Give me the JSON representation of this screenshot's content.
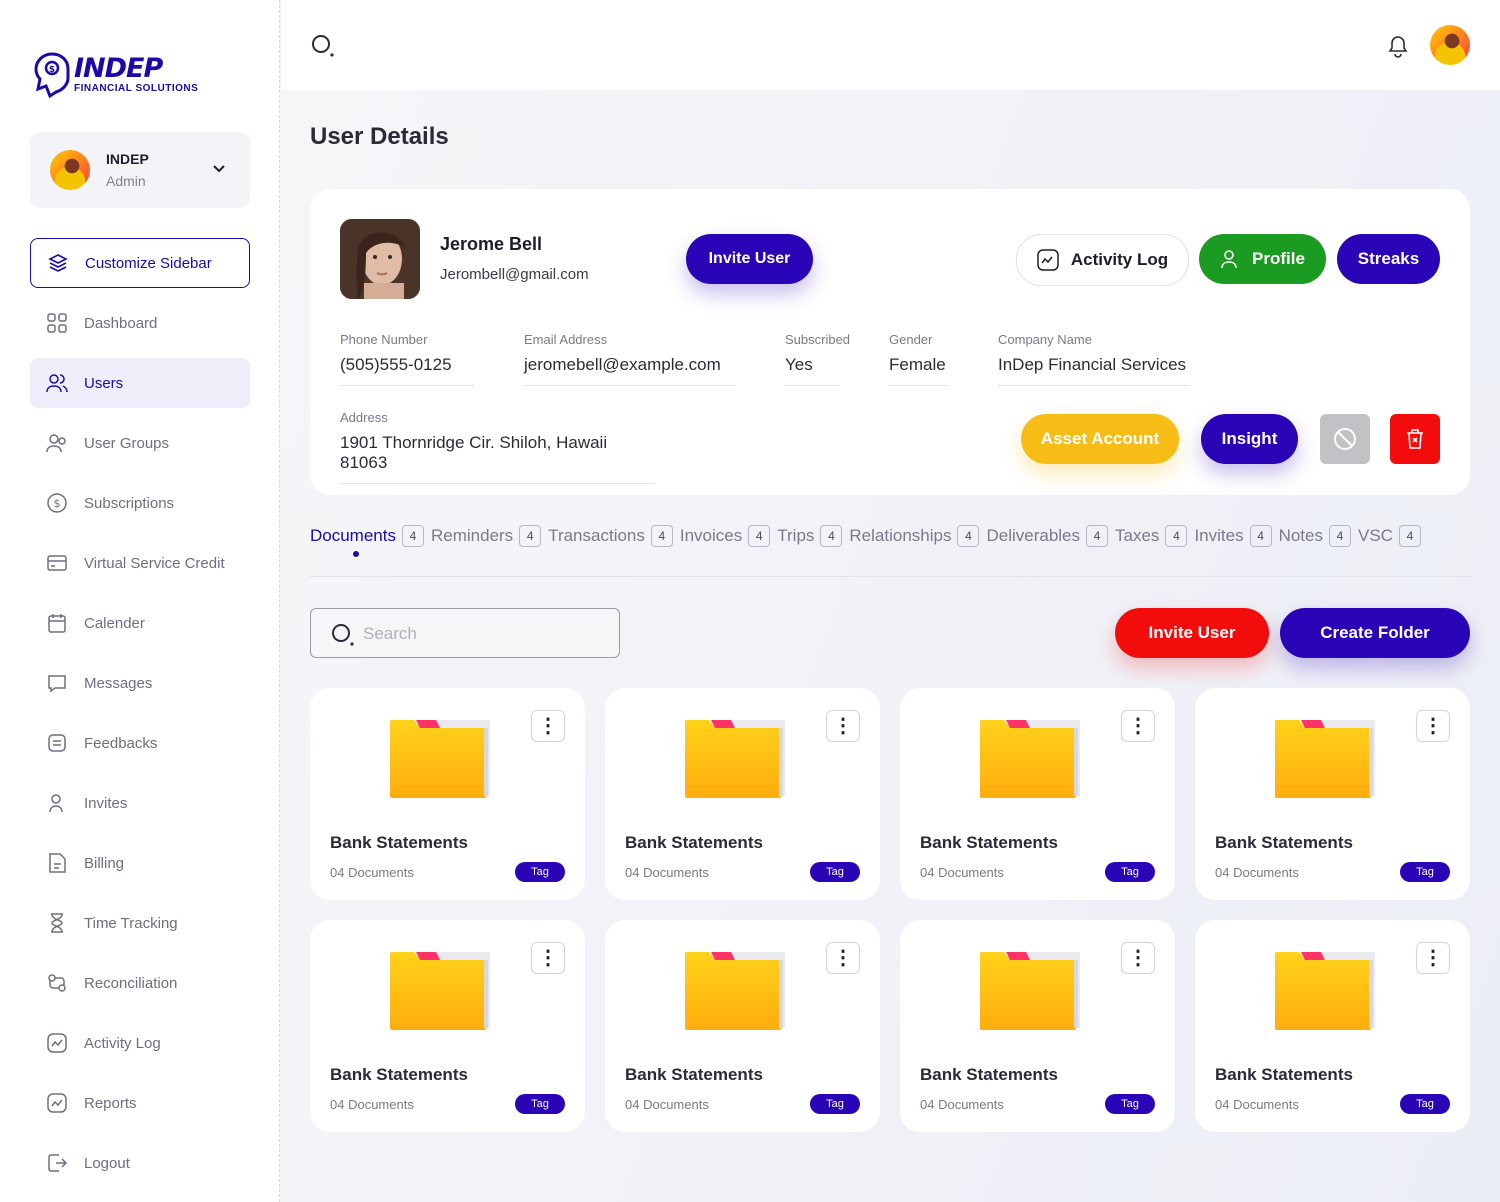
{
  "brand": {
    "name": "INDEP",
    "subtitle": "FINANCIAL SOLUTIONS",
    "accent": "#1b0aa8"
  },
  "account": {
    "name": "INDEP",
    "role": "Admin"
  },
  "sidebar": {
    "customize_label": "Customize Sidebar",
    "items": [
      {
        "label": "Dashboard",
        "icon": "grid-icon"
      },
      {
        "label": "Users",
        "icon": "users-icon",
        "active": true
      },
      {
        "label": "User Groups",
        "icon": "user-groups-icon"
      },
      {
        "label": "Subscriptions",
        "icon": "dollar-icon"
      },
      {
        "label": "Virtual Service Credit",
        "icon": "card-icon"
      },
      {
        "label": "Calender",
        "icon": "calendar-icon"
      },
      {
        "label": "Messages",
        "icon": "message-icon"
      },
      {
        "label": "Feedbacks",
        "icon": "feedback-icon"
      },
      {
        "label": "Invites",
        "icon": "invite-icon"
      },
      {
        "label": "Billing",
        "icon": "billing-icon"
      },
      {
        "label": "Time Tracking",
        "icon": "hourglass-icon"
      },
      {
        "label": "Reconciliation",
        "icon": "reconciliation-icon"
      },
      {
        "label": "Activity Log",
        "icon": "activity-icon"
      },
      {
        "label": "Reports",
        "icon": "reports-icon"
      },
      {
        "label": "Logout",
        "icon": "logout-icon"
      }
    ]
  },
  "page": {
    "title": "User Details"
  },
  "user": {
    "name": "Jerome Bell",
    "email": "Jerombell@gmail.com",
    "invite_label": "Invite User",
    "activity_label": "Activity Log",
    "profile_label": "Profile",
    "streaks_label": "Streaks",
    "fields": {
      "phone": {
        "label": "Phone Number",
        "value": "(505)555-0125"
      },
      "email": {
        "label": "Email Address",
        "value": "jeromebell@example.com"
      },
      "subscribed": {
        "label": "Subscribed",
        "value": "Yes"
      },
      "gender": {
        "label": "Gender",
        "value": "Female"
      },
      "company": {
        "label": "Company Name",
        "value": "InDep Financial Services"
      },
      "address": {
        "label": "Address",
        "value": "1901 Thornridge Cir. Shiloh, Hawaii 81063"
      }
    },
    "asset_label": "Asset Account",
    "insight_label": "Insight"
  },
  "tabs": [
    {
      "label": "Documents",
      "count": "4",
      "active": true
    },
    {
      "label": "Reminders",
      "count": "4"
    },
    {
      "label": "Transactions",
      "count": "4"
    },
    {
      "label": "Invoices",
      "count": "4"
    },
    {
      "label": "Trips",
      "count": "4"
    },
    {
      "label": "Relationships",
      "count": "4"
    },
    {
      "label": "Deliverables",
      "count": "4"
    },
    {
      "label": "Taxes",
      "count": "4"
    },
    {
      "label": "Invites",
      "count": "4"
    },
    {
      "label": "Notes",
      "count": "4"
    },
    {
      "label": "VSC",
      "count": "4"
    }
  ],
  "documents": {
    "search_placeholder": "Search",
    "invite_label": "Invite User",
    "create_label": "Create Folder",
    "folders": [
      {
        "name": "Bank Statements",
        "count": "04 Documents",
        "tag": "Tag"
      },
      {
        "name": "Bank Statements",
        "count": "04 Documents",
        "tag": "Tag"
      },
      {
        "name": "Bank Statements",
        "count": "04 Documents",
        "tag": "Tag"
      },
      {
        "name": "Bank Statements",
        "count": "04 Documents",
        "tag": "Tag"
      },
      {
        "name": "Bank Statements",
        "count": "04 Documents",
        "tag": "Tag"
      },
      {
        "name": "Bank Statements",
        "count": "04 Documents",
        "tag": "Tag"
      },
      {
        "name": "Bank Statements",
        "count": "04 Documents",
        "tag": "Tag"
      },
      {
        "name": "Bank Statements",
        "count": "04 Documents",
        "tag": "Tag"
      }
    ]
  }
}
